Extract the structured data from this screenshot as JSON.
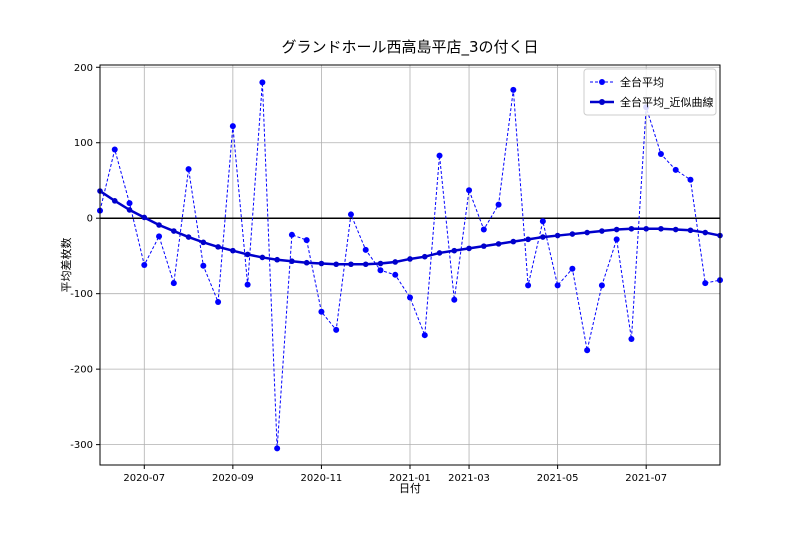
{
  "chart_data": {
    "type": "line",
    "title": "グランドホール西高島平店_3の付く日",
    "x_label": "日付",
    "y_label": "平均差枚数",
    "categories": [
      null,
      null,
      null,
      "2020-07",
      null,
      null,
      null,
      null,
      null,
      "2020-09",
      null,
      null,
      null,
      null,
      null,
      "2020-11",
      null,
      null,
      null,
      null,
      null,
      "2021-01",
      null,
      null,
      null,
      "2021-03",
      null,
      null,
      null,
      null,
      null,
      "2021-05",
      null,
      null,
      null,
      null,
      null,
      "2021-07",
      null,
      null,
      null,
      null,
      null
    ],
    "series": [
      {
        "name": "全台平均",
        "color": "#0000ff",
        "style": "dashed",
        "values": [
          10,
          91,
          20,
          -62,
          -24,
          -86,
          65,
          -63,
          -111,
          122,
          -88,
          180,
          -305,
          -22,
          -29,
          -124,
          -148,
          5,
          -42,
          -69,
          -75,
          -105,
          -155,
          83,
          -108,
          37,
          -15,
          18,
          170,
          -89,
          -4,
          -89,
          -67,
          -175,
          -89,
          -28,
          -160,
          147,
          85,
          64,
          51,
          -86,
          -82
        ]
      },
      {
        "name": "全台平均_近似曲線",
        "color": "#0000cc",
        "style": "solid",
        "values": [
          36,
          23,
          11,
          1,
          -9,
          -17,
          -25,
          -32,
          -38,
          -43,
          -48,
          -52,
          -55,
          -57,
          -59,
          -60,
          -61,
          -61,
          -61,
          -60,
          -58,
          -54,
          -51,
          -46,
          -43,
          -40,
          -37,
          -34,
          -31,
          -28,
          -25,
          -23,
          -21,
          -19,
          -17,
          -15,
          -14,
          -14,
          -14,
          -15,
          -16,
          -19,
          -23
        ]
      }
    ],
    "ylim": [
      -327,
      203
    ],
    "yticks": [
      -300,
      -200,
      -100,
      0,
      100,
      200
    ],
    "hline": 0,
    "grid": true,
    "legend": "upper-right"
  }
}
